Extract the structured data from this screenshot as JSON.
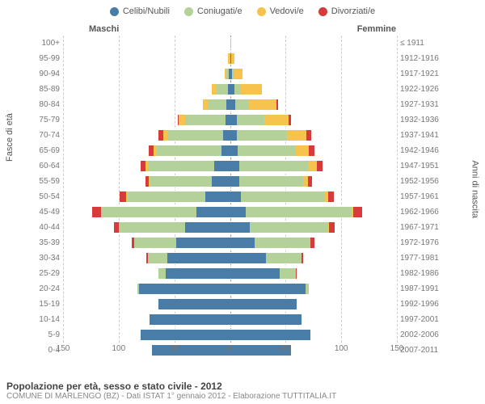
{
  "legend": {
    "items": [
      {
        "label": "Celibi/Nubili",
        "color": "#4a7ca8"
      },
      {
        "label": "Coniugati/e",
        "color": "#b4d199"
      },
      {
        "label": "Vedovi/e",
        "color": "#f6c34d"
      },
      {
        "label": "Divorziati/e",
        "color": "#d73a3a"
      }
    ]
  },
  "headers": {
    "male": "Maschi",
    "female": "Femmine"
  },
  "axis_labels": {
    "left": "Fasce di età",
    "right": "Anni di nascita"
  },
  "xaxis": {
    "max": 150,
    "ticks": [
      150,
      100,
      50,
      0,
      50,
      100,
      150
    ]
  },
  "colors": {
    "single": "#4a7ca8",
    "married": "#b4d199",
    "widow": "#f6c34d",
    "divorced": "#d73a3a",
    "grid": "#cccccc",
    "center": "#999999"
  },
  "footer": {
    "title": "Popolazione per età, sesso e stato civile - 2012",
    "subtitle": "COMUNE DI MARLENGO (BZ) - Dati ISTAT 1° gennaio 2012 - Elaborazione TUTTITALIA.IT"
  },
  "rows": [
    {
      "age": "100+",
      "birth": "≤ 1911",
      "m": {
        "s": 0,
        "c": 0,
        "v": 0,
        "d": 0
      },
      "f": {
        "s": 0,
        "c": 0,
        "v": 1,
        "d": 0
      }
    },
    {
      "age": "95-99",
      "birth": "1912-1916",
      "m": {
        "s": 0,
        "c": 0,
        "v": 2,
        "d": 0
      },
      "f": {
        "s": 1,
        "c": 0,
        "v": 3,
        "d": 0
      }
    },
    {
      "age": "90-94",
      "birth": "1917-1921",
      "m": {
        "s": 1,
        "c": 2,
        "v": 2,
        "d": 0
      },
      "f": {
        "s": 2,
        "c": 1,
        "v": 8,
        "d": 0
      }
    },
    {
      "age": "85-89",
      "birth": "1922-1926",
      "m": {
        "s": 2,
        "c": 10,
        "v": 4,
        "d": 0
      },
      "f": {
        "s": 4,
        "c": 5,
        "v": 20,
        "d": 0
      }
    },
    {
      "age": "80-84",
      "birth": "1927-1931",
      "m": {
        "s": 3,
        "c": 16,
        "v": 5,
        "d": 0
      },
      "f": {
        "s": 5,
        "c": 12,
        "v": 25,
        "d": 1
      }
    },
    {
      "age": "75-79",
      "birth": "1932-1936",
      "m": {
        "s": 4,
        "c": 36,
        "v": 6,
        "d": 1
      },
      "f": {
        "s": 6,
        "c": 25,
        "v": 22,
        "d": 2
      }
    },
    {
      "age": "70-74",
      "birth": "1937-1941",
      "m": {
        "s": 6,
        "c": 50,
        "v": 4,
        "d": 4
      },
      "f": {
        "s": 6,
        "c": 45,
        "v": 18,
        "d": 4
      }
    },
    {
      "age": "65-69",
      "birth": "1942-1946",
      "m": {
        "s": 8,
        "c": 58,
        "v": 3,
        "d": 4
      },
      "f": {
        "s": 7,
        "c": 52,
        "v": 12,
        "d": 5
      }
    },
    {
      "age": "60-64",
      "birth": "1947-1951",
      "m": {
        "s": 14,
        "c": 60,
        "v": 2,
        "d": 4
      },
      "f": {
        "s": 8,
        "c": 62,
        "v": 8,
        "d": 5
      }
    },
    {
      "age": "55-59",
      "birth": "1952-1956",
      "m": {
        "s": 16,
        "c": 56,
        "v": 1,
        "d": 3
      },
      "f": {
        "s": 8,
        "c": 58,
        "v": 4,
        "d": 4
      }
    },
    {
      "age": "50-54",
      "birth": "1957-1961",
      "m": {
        "s": 22,
        "c": 70,
        "v": 1,
        "d": 6
      },
      "f": {
        "s": 10,
        "c": 75,
        "v": 3,
        "d": 5
      }
    },
    {
      "age": "45-49",
      "birth": "1962-1966",
      "m": {
        "s": 30,
        "c": 85,
        "v": 1,
        "d": 8
      },
      "f": {
        "s": 14,
        "c": 95,
        "v": 2,
        "d": 8
      }
    },
    {
      "age": "40-44",
      "birth": "1967-1971",
      "m": {
        "s": 40,
        "c": 60,
        "v": 0,
        "d": 4
      },
      "f": {
        "s": 18,
        "c": 70,
        "v": 1,
        "d": 5
      }
    },
    {
      "age": "35-39",
      "birth": "1972-1976",
      "m": {
        "s": 48,
        "c": 38,
        "v": 0,
        "d": 2
      },
      "f": {
        "s": 22,
        "c": 50,
        "v": 0,
        "d": 4
      }
    },
    {
      "age": "30-34",
      "birth": "1977-1981",
      "m": {
        "s": 56,
        "c": 18,
        "v": 0,
        "d": 1
      },
      "f": {
        "s": 32,
        "c": 32,
        "v": 0,
        "d": 2
      }
    },
    {
      "age": "25-29",
      "birth": "1982-1986",
      "m": {
        "s": 58,
        "c": 6,
        "v": 0,
        "d": 0
      },
      "f": {
        "s": 45,
        "c": 14,
        "v": 0,
        "d": 1
      }
    },
    {
      "age": "20-24",
      "birth": "1987-1991",
      "m": {
        "s": 82,
        "c": 1,
        "v": 0,
        "d": 0
      },
      "f": {
        "s": 68,
        "c": 3,
        "v": 0,
        "d": 0
      }
    },
    {
      "age": "15-19",
      "birth": "1992-1996",
      "m": {
        "s": 64,
        "c": 0,
        "v": 0,
        "d": 0
      },
      "f": {
        "s": 60,
        "c": 0,
        "v": 0,
        "d": 0
      }
    },
    {
      "age": "10-14",
      "birth": "1997-2001",
      "m": {
        "s": 72,
        "c": 0,
        "v": 0,
        "d": 0
      },
      "f": {
        "s": 64,
        "c": 0,
        "v": 0,
        "d": 0
      }
    },
    {
      "age": "5-9",
      "birth": "2002-2006",
      "m": {
        "s": 80,
        "c": 0,
        "v": 0,
        "d": 0
      },
      "f": {
        "s": 72,
        "c": 0,
        "v": 0,
        "d": 0
      }
    },
    {
      "age": "0-4",
      "birth": "2007-2011",
      "m": {
        "s": 70,
        "c": 0,
        "v": 0,
        "d": 0
      },
      "f": {
        "s": 55,
        "c": 0,
        "v": 0,
        "d": 0
      }
    }
  ]
}
